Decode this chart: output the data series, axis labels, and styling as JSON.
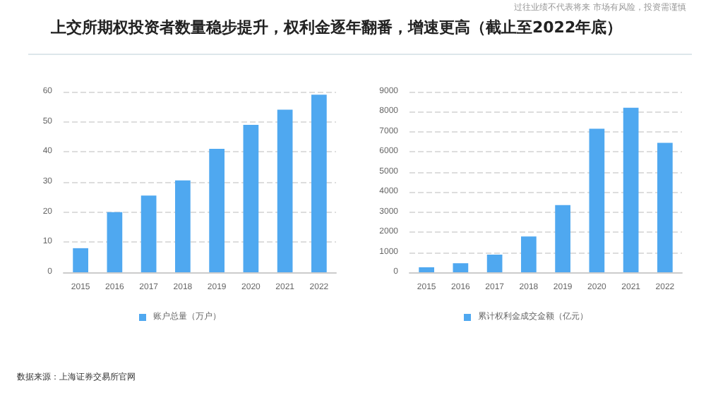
{
  "chart_data": [
    {
      "type": "bar",
      "title": "上交所期权投资者数量稳步提升，权利金逐年翻番，增速更高（截止至2022年底）",
      "annotations": [
        "过往业绩不代表将来 市场有风险，投资需谨慎",
        "数据来源：上海证券交易所官网"
      ],
      "categories": [
        "2015",
        "2016",
        "2017",
        "2018",
        "2019",
        "2020",
        "2021",
        "2022"
      ],
      "series": [
        {
          "name": "账户总量（万户）",
          "color": "#4fa8f0",
          "values": [
            8,
            20,
            25.5,
            30.5,
            41,
            49,
            54,
            59
          ]
        }
      ],
      "ylim": [
        0,
        60
      ],
      "yticks": [
        0,
        10,
        20,
        30,
        40,
        50,
        60
      ],
      "grid": "y",
      "legend": "bottom"
    },
    {
      "type": "bar",
      "categories": [
        "2015",
        "2016",
        "2017",
        "2018",
        "2019",
        "2020",
        "2021",
        "2022"
      ],
      "series": [
        {
          "name": "累计权利金成交金额（亿元）",
          "color": "#4fa8f0",
          "values": [
            250,
            450,
            880,
            1780,
            3350,
            7150,
            8200,
            6450
          ]
        }
      ],
      "ylim": [
        0,
        9000
      ],
      "yticks": [
        0,
        1000,
        2000,
        3000,
        4000,
        5000,
        6000,
        7000,
        8000,
        9000
      ],
      "grid": "y",
      "legend": "bottom"
    }
  ]
}
